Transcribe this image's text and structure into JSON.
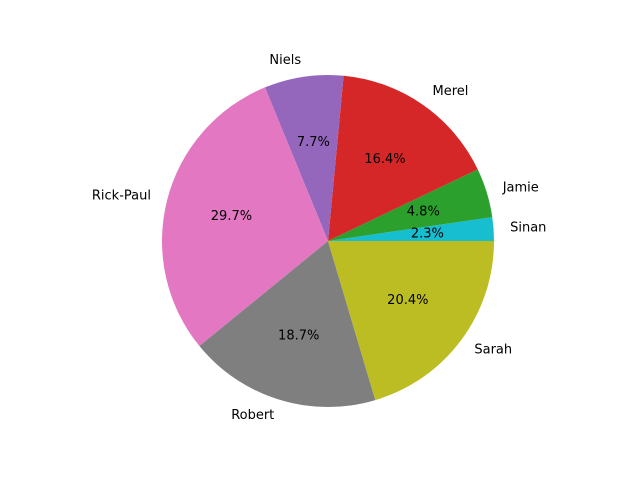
{
  "chart_data": {
    "type": "pie",
    "title": "",
    "start_angle_deg": 0,
    "direction": "counterclockwise",
    "slices": [
      {
        "label": "Sinan",
        "value": 2.3,
        "pct_label": "2.3%",
        "color": "#17becf"
      },
      {
        "label": "Jamie",
        "value": 4.8,
        "pct_label": "4.8%",
        "color": "#2ca02c"
      },
      {
        "label": "Merel",
        "value": 16.4,
        "pct_label": "16.4%",
        "color": "#d62728"
      },
      {
        "label": "Niels",
        "value": 7.7,
        "pct_label": "7.7%",
        "color": "#9467bd"
      },
      {
        "label": "Rick-Paul",
        "value": 29.7,
        "pct_label": "29.7%",
        "color": "#e377c2"
      },
      {
        "label": "Robert",
        "value": 18.7,
        "pct_label": "18.7%",
        "color": "#7f7f7f"
      },
      {
        "label": "Sarah",
        "value": 20.4,
        "pct_label": "20.4%",
        "color": "#bcbd22"
      }
    ]
  }
}
